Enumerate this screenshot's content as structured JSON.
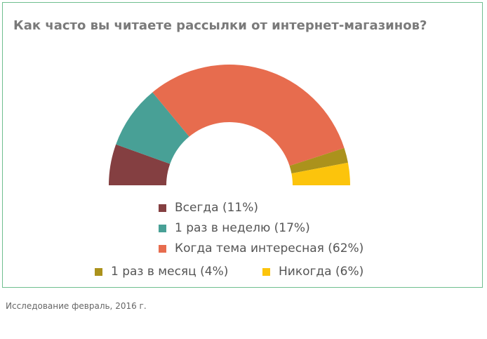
{
  "chart_data": {
    "type": "pie",
    "variant": "semi-donut",
    "title": "Как часто вы читаете рассылки от интернет-магазинов?",
    "slices": [
      {
        "label": "Всегда (11%)",
        "value": 11,
        "color": "#843f41"
      },
      {
        "label": "1 раз в неделю (17%)",
        "value": 17,
        "color": "#48a096"
      },
      {
        "label": "Когда тема интересная (62%)",
        "value": 62,
        "color": "#e76c4e"
      },
      {
        "label": "1 раз в месяц (4%)",
        "value": 4,
        "color": "#ab921c"
      },
      {
        "label": "Никогда (6%)",
        "value": 6,
        "color": "#fcc40c"
      }
    ],
    "legend_position": "bottom"
  },
  "footnote": "Исследование февраль, 2016 г."
}
